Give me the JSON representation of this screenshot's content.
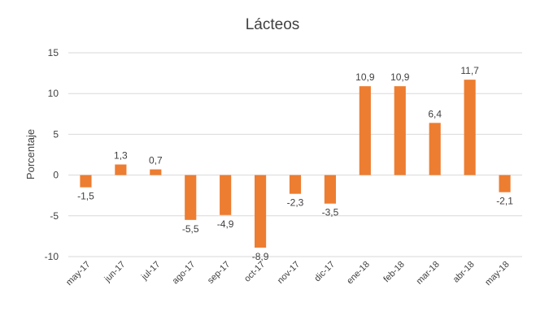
{
  "chart_data": {
    "type": "bar",
    "title": "Lácteos",
    "xlabel": "",
    "ylabel": "Porcentaje",
    "ylim": [
      -10,
      15
    ],
    "yticks": [
      -10,
      -5,
      0,
      5,
      10,
      15
    ],
    "grid": true,
    "legend": "none",
    "bar_color": "#ED7D31",
    "grid_color": "#D9D9D9",
    "categories": [
      "may-17",
      "jun-17",
      "jul-17",
      "ago-17",
      "sep-17",
      "oct-17",
      "nov-17",
      "dic-17",
      "ene-18",
      "feb-18",
      "mar-18",
      "abr-18",
      "may-18"
    ],
    "values": [
      -1.5,
      1.3,
      0.7,
      -5.5,
      -4.9,
      -8.9,
      -2.3,
      -3.5,
      10.9,
      10.9,
      6.4,
      11.7,
      -2.1
    ],
    "data_labels": [
      "-1,5",
      "1,3",
      "0,7",
      "-5,5",
      "-4,9",
      "-8,9",
      "-2,3",
      "-3,5",
      "10,9",
      "10,9",
      "6,4",
      "11,7",
      "-2,1"
    ]
  }
}
